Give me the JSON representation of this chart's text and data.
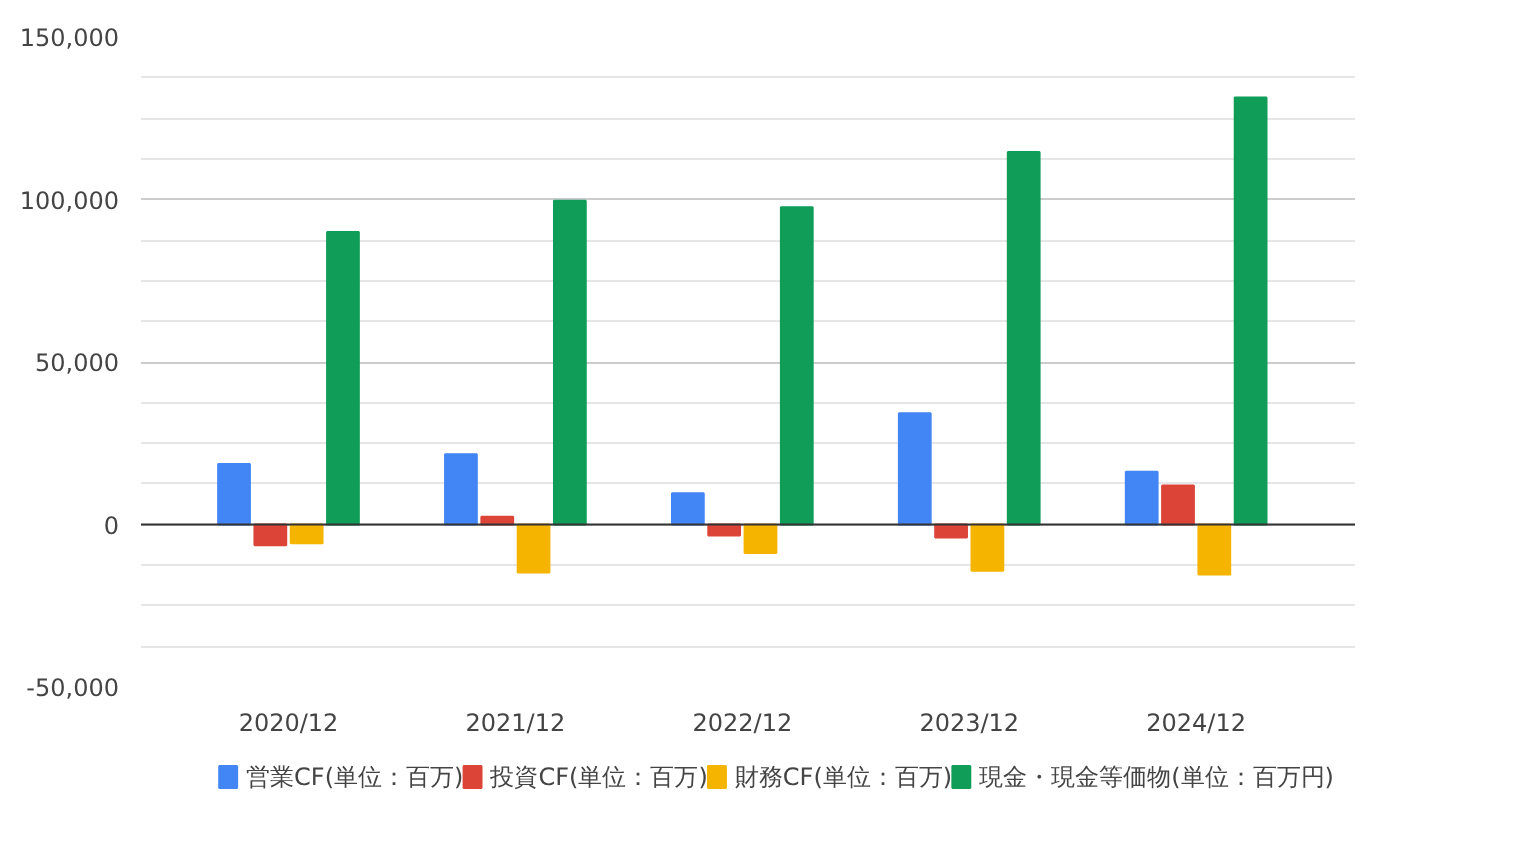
{
  "chart_data": {
    "type": "bar",
    "categories": [
      "2020/12",
      "2021/12",
      "2022/12",
      "2023/12",
      "2024/12"
    ],
    "series": [
      {
        "name": "営業CF(単位：百万)",
        "color": "#4285f4",
        "values": [
          18600,
          21600,
          9600,
          34200,
          16200
        ]
      },
      {
        "name": "投資CF(単位：百万)",
        "color": "#db4437",
        "values": [
          -6400,
          2400,
          -3400,
          -4000,
          12000
        ]
      },
      {
        "name": "財務CF(単位：百万)",
        "color": "#f4b400",
        "values": [
          -5800,
          -14800,
          -8800,
          -14200,
          -15400
        ]
      },
      {
        "name": "現金・現金等価物(単位：百万円)",
        "color": "#0f9d58",
        "values": [
          90000,
          99600,
          97600,
          114600,
          131400
        ]
      }
    ],
    "ylim": [
      -50000,
      150000
    ],
    "yticks": [
      {
        "value": -50000,
        "label": "-50,000"
      },
      {
        "value": 0,
        "label": "0"
      },
      {
        "value": 50000,
        "label": "50,000"
      },
      {
        "value": 100000,
        "label": "100,000"
      },
      {
        "value": 150000,
        "label": "150,000"
      }
    ],
    "grid": "y",
    "legend": "bottom"
  }
}
